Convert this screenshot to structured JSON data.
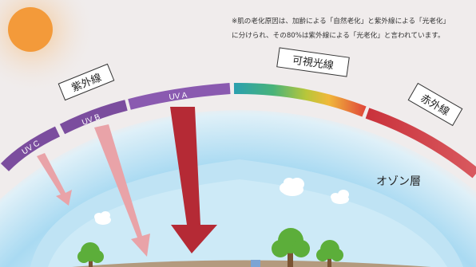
{
  "note": {
    "line1": "※肌の老化原因は、加齢による「自然老化」と紫外線による「光老化」",
    "line2": "に分けられ、その80%は紫外線による「光老化」と言われています。"
  },
  "bands": {
    "uvc": "UV C",
    "uvb": "UV B",
    "uva": "UV A"
  },
  "labels": {
    "uv": "紫外線",
    "visible": "可視光線",
    "infrared": "赤外線",
    "ozone": "オゾン層"
  },
  "colors": {
    "background": "#f0ecec",
    "sun": "#f39a3a",
    "uv_band": "#7b4d9e",
    "uva_arrow": "#b52a35",
    "uvbc_arrow": "#e9a3a8",
    "sky": "#bfe3f4",
    "ground": "#b39a7e",
    "tree": "#5cae3a"
  },
  "icons": [
    "sun-icon",
    "cloud-icon",
    "tree-icon"
  ]
}
